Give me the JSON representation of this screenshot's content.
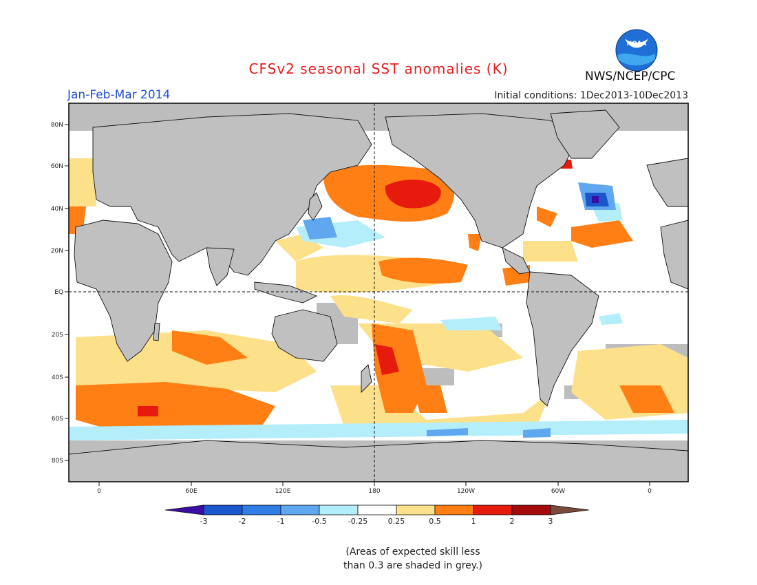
{
  "title": "CFSv2 seasonal SST anomalies (K)",
  "season": "Jan-Feb-Mar 2014",
  "initial_conditions": "Initial conditions: 1Dec2013-10Dec2013",
  "agency": "NWS/NCEP/CPC",
  "logo_text": "NOAA",
  "note_line1": "(Areas of expected skill less",
  "note_line2": "than 0.3 are shaded in grey.)",
  "lat_ticks": [
    "80N",
    "60N",
    "40N",
    "20N",
    "EQ",
    "20S",
    "40S",
    "60S",
    "80S"
  ],
  "lon_ticks": [
    "0",
    "60E",
    "120E",
    "180",
    "120W",
    "60W",
    "0"
  ],
  "colorbar": {
    "labels": [
      "-3",
      "-2",
      "-1",
      "-0.5",
      "-0.25",
      "0.25",
      "0.5",
      "1",
      "2",
      "3"
    ],
    "colors": [
      "#3c0da3",
      "#1a56cc",
      "#2f7de6",
      "#5fa8ef",
      "#b3eefa",
      "#ffffff",
      "#fde08a",
      "#ff7f14",
      "#e61a0d",
      "#a50a0a",
      "#7a4a3a"
    ]
  },
  "colors": {
    "land": "#c0c0c0",
    "ocean_neutral": "#ffffff",
    "low_skill": "#bdbdbd",
    "title_red": "#e81c1c",
    "season_blue": "#1f4fd8"
  }
}
